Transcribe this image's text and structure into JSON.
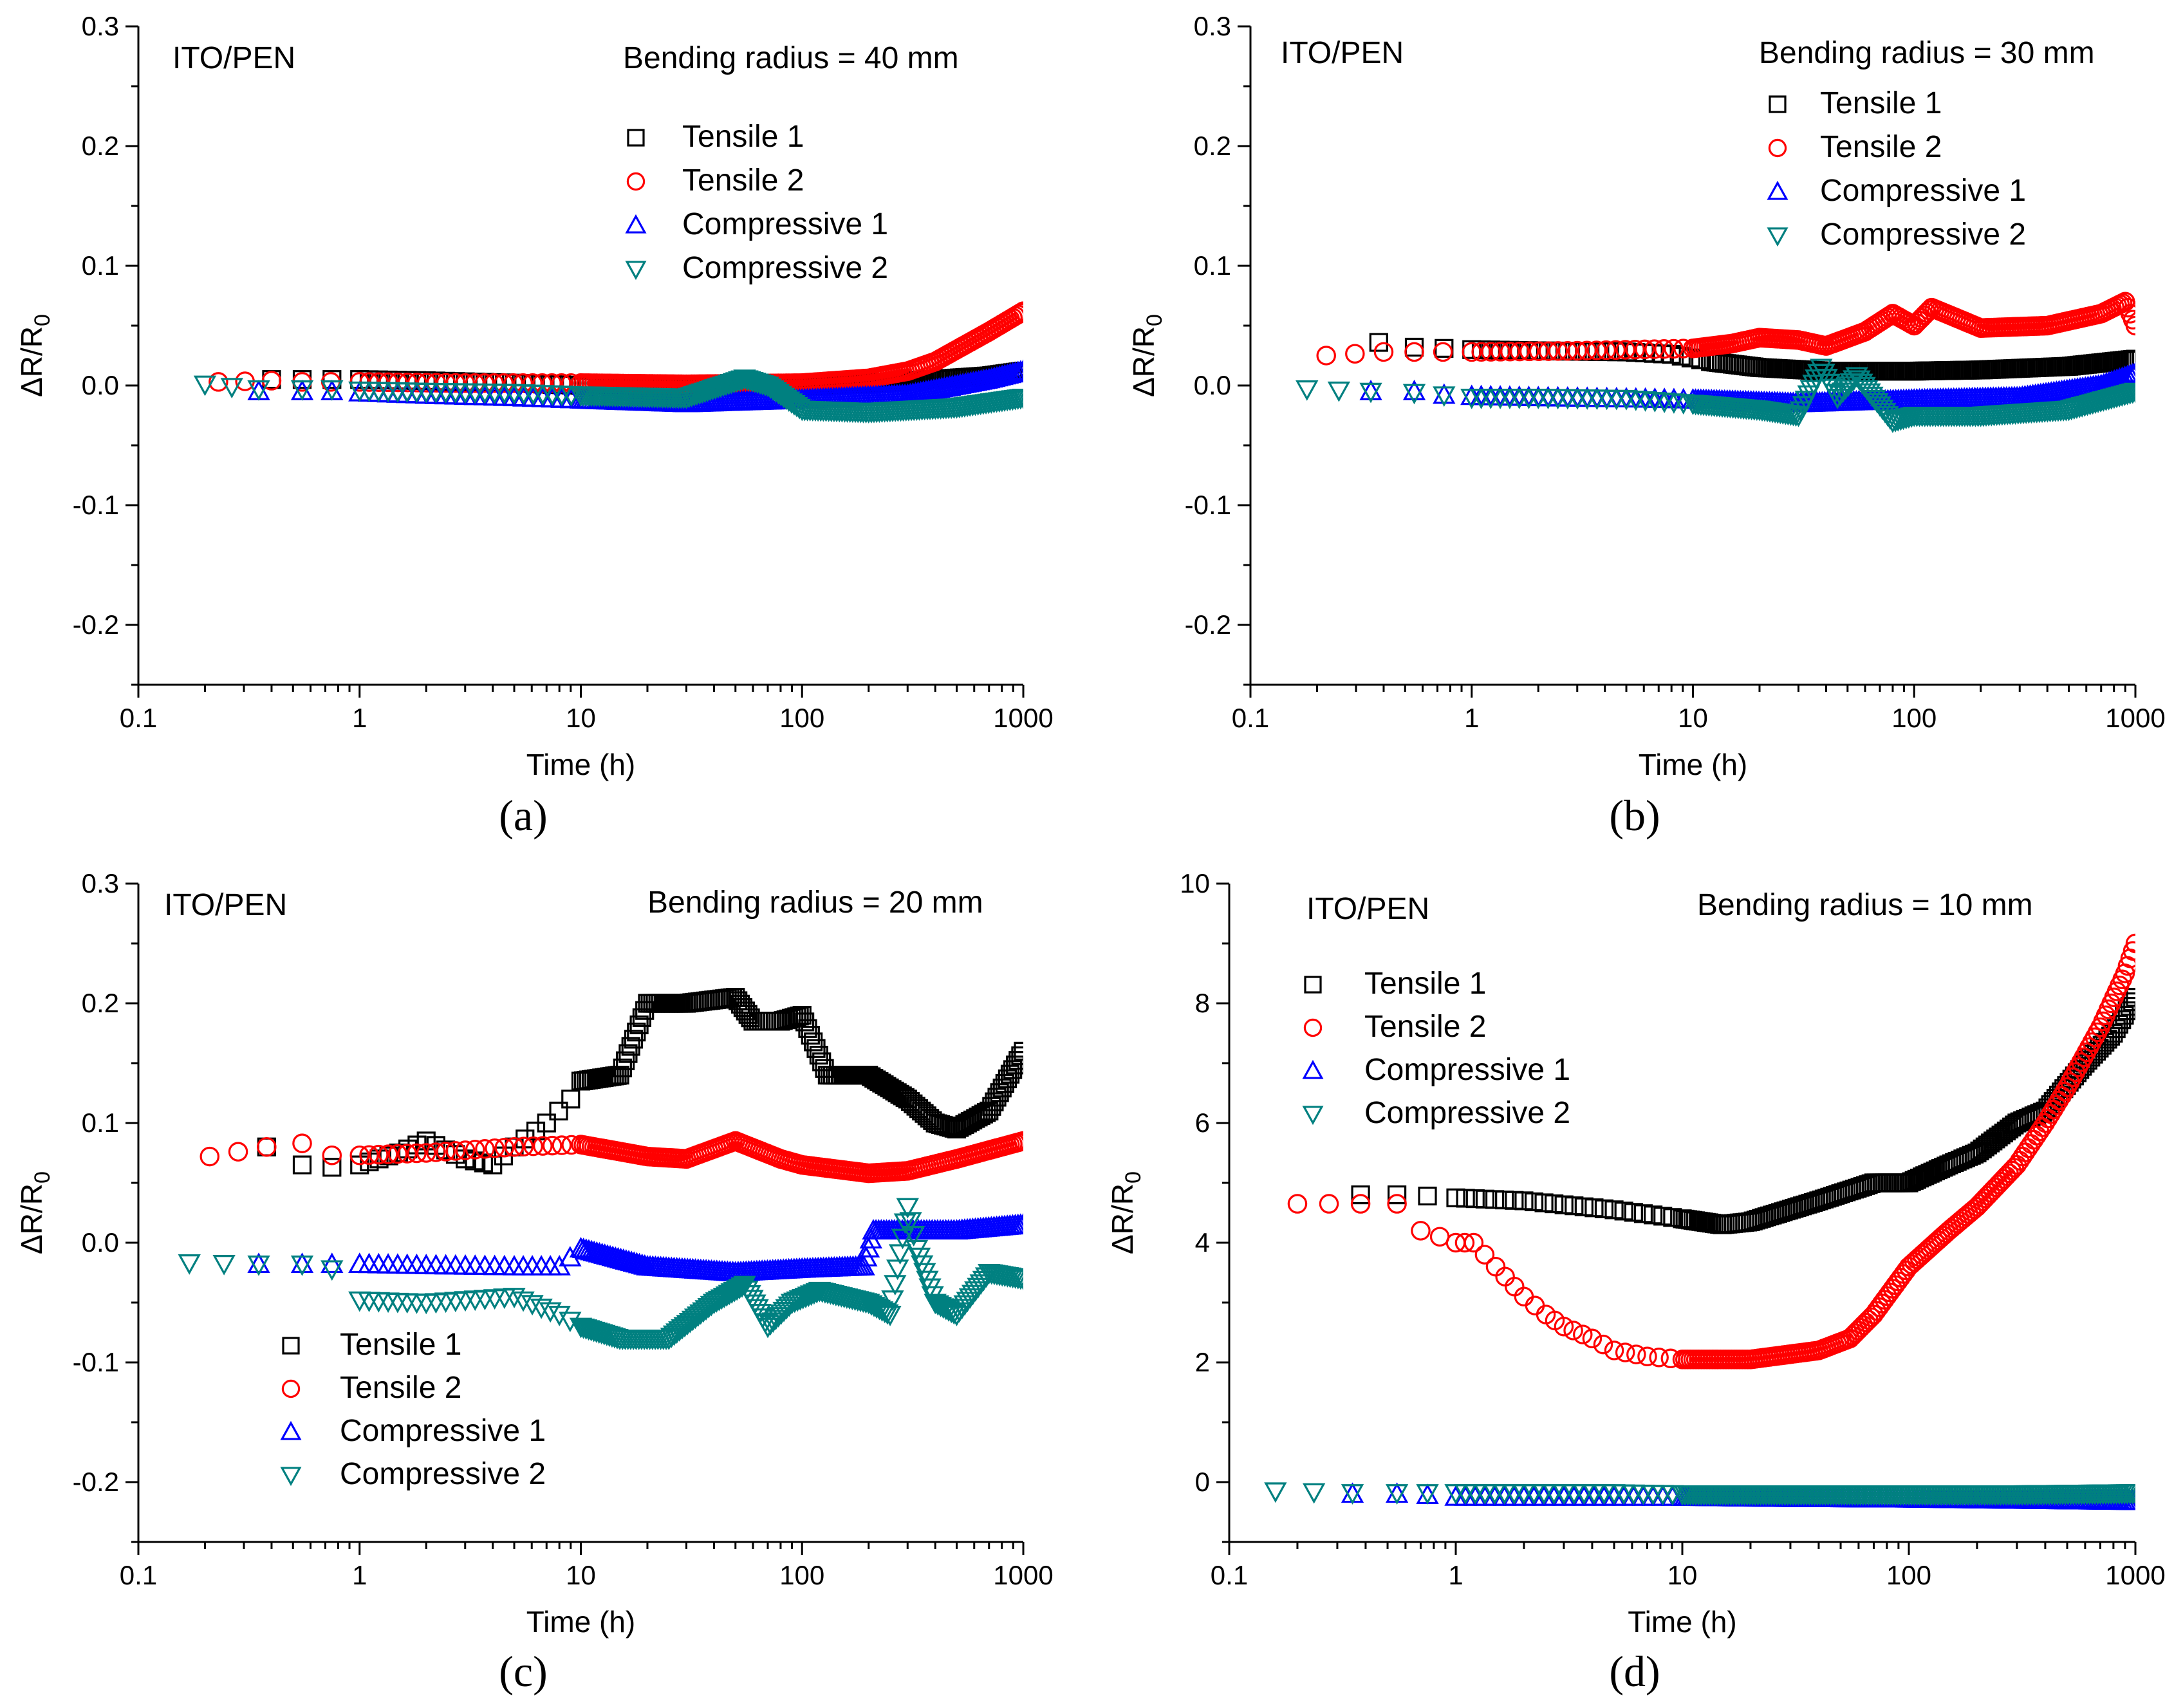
{
  "chart_data": [
    {
      "type": "scatter",
      "panel_label": "(a)",
      "sample_label": "ITO/PEN",
      "title": "Bending radius = 40 mm",
      "xlabel": "Time (h)",
      "ylabel": "ΔR/R0",
      "ylabel_main": "ΔR/R",
      "ylabel_sub": "0",
      "xscale": "log",
      "xlim": [
        0.1,
        1000
      ],
      "ylim": [
        -0.25,
        0.3
      ],
      "xticks": [
        0.1,
        1,
        10,
        100,
        1000
      ],
      "xtick_labels": [
        "0.1",
        "1",
        "10",
        "100",
        "1000"
      ],
      "yticks": [
        -0.2,
        -0.1,
        0.0,
        0.1,
        0.2,
        0.3
      ],
      "ytick_labels": [
        "-0.2",
        "-0.1",
        "0.0",
        "0.1",
        "0.2",
        "0.3"
      ],
      "legend_position": "top-right",
      "series": [
        {
          "name": "Tensile 1",
          "marker": "square",
          "color": "#000000",
          "x": [
            0.4,
            0.55,
            0.75,
            1,
            2,
            5,
            10,
            30,
            100,
            200,
            400,
            700,
            1000
          ],
          "y": [
            0.005,
            0.005,
            0.005,
            0.005,
            0.004,
            0.002,
            0.0,
            -0.002,
            0.0,
            0.002,
            0.005,
            0.008,
            0.012
          ]
        },
        {
          "name": "Tensile 2",
          "marker": "circle",
          "color": "#ff0000",
          "x": [
            0.23,
            0.4,
            0.55,
            1,
            3,
            10,
            30,
            100,
            200,
            300,
            400,
            500,
            700,
            1000
          ],
          "y": [
            0.003,
            0.004,
            0.003,
            0.003,
            0.002,
            0.002,
            0.001,
            0.002,
            0.006,
            0.012,
            0.02,
            0.03,
            0.045,
            0.062
          ]
        },
        {
          "name": "Compressive 1",
          "marker": "triangle-up",
          "color": "#0000ff",
          "x": [
            0.35,
            0.55,
            0.75,
            1,
            2,
            5,
            10,
            30,
            100,
            300,
            700,
            1000
          ],
          "y": [
            -0.005,
            -0.005,
            -0.005,
            -0.006,
            -0.008,
            -0.01,
            -0.012,
            -0.015,
            -0.012,
            -0.008,
            0.005,
            0.012
          ]
        },
        {
          "name": "Compressive 2",
          "marker": "triangle-down",
          "color": "#008080",
          "x": [
            0.2,
            0.35,
            0.55,
            0.75,
            1,
            2,
            5,
            10,
            30,
            55,
            70,
            100,
            200,
            500,
            1000
          ],
          "y": [
            0.001,
            -0.003,
            -0.003,
            -0.003,
            -0.004,
            -0.005,
            -0.006,
            -0.008,
            -0.01,
            0.006,
            0.0,
            -0.02,
            -0.022,
            -0.018,
            -0.01
          ]
        }
      ]
    },
    {
      "type": "scatter",
      "panel_label": "(b)",
      "sample_label": "ITO/PEN",
      "title": "Bending radius = 30 mm",
      "xlabel": "Time (h)",
      "ylabel": "ΔR/R0",
      "ylabel_main": "ΔR/R",
      "ylabel_sub": "0",
      "xscale": "log",
      "xlim": [
        0.1,
        1000
      ],
      "ylim": [
        -0.25,
        0.3
      ],
      "xticks": [
        0.1,
        1,
        10,
        100,
        1000
      ],
      "xtick_labels": [
        "0.1",
        "1",
        "10",
        "100",
        "1000"
      ],
      "yticks": [
        -0.2,
        -0.1,
        0.0,
        0.1,
        0.2,
        0.3
      ],
      "ytick_labels": [
        "-0.2",
        "-0.1",
        "0.0",
        "0.1",
        "0.2",
        "0.3"
      ],
      "legend_position": "top-right",
      "series": [
        {
          "name": "Tensile 1",
          "marker": "square",
          "color": "#000000",
          "x": [
            0.38,
            0.55,
            0.75,
            1,
            2,
            5,
            8,
            12,
            20,
            40,
            100,
            200,
            500,
            1000
          ],
          "y": [
            0.036,
            0.032,
            0.031,
            0.03,
            0.029,
            0.028,
            0.026,
            0.02,
            0.015,
            0.012,
            0.012,
            0.013,
            0.016,
            0.022
          ]
        },
        {
          "name": "Tensile 2",
          "marker": "circle",
          "color": "#ff0000",
          "x": [
            0.22,
            0.4,
            0.55,
            1,
            3,
            10,
            15,
            20,
            30,
            40,
            60,
            80,
            100,
            120,
            200,
            400,
            700,
            900,
            1000
          ],
          "y": [
            0.025,
            0.028,
            0.028,
            0.028,
            0.029,
            0.031,
            0.035,
            0.04,
            0.038,
            0.033,
            0.045,
            0.06,
            0.05,
            0.065,
            0.048,
            0.05,
            0.06,
            0.07,
            0.05
          ]
        },
        {
          "name": "Compressive 1",
          "marker": "triangle-up",
          "color": "#0000ff",
          "x": [
            0.35,
            0.55,
            0.75,
            1,
            2,
            5,
            10,
            30,
            100,
            300,
            700,
            1000
          ],
          "y": [
            -0.005,
            -0.005,
            -0.008,
            -0.009,
            -0.01,
            -0.011,
            -0.012,
            -0.015,
            -0.012,
            -0.01,
            0.0,
            0.01
          ]
        },
        {
          "name": "Compressive 2",
          "marker": "triangle-down",
          "color": "#008080",
          "x": [
            0.18,
            0.35,
            0.55,
            0.75,
            1,
            2,
            5,
            10,
            20,
            30,
            38,
            45,
            55,
            80,
            100,
            200,
            500,
            1000
          ],
          "y": [
            -0.003,
            -0.005,
            -0.006,
            -0.008,
            -0.01,
            -0.01,
            -0.011,
            -0.015,
            -0.02,
            -0.025,
            0.015,
            -0.01,
            0.008,
            -0.03,
            -0.025,
            -0.025,
            -0.02,
            -0.005
          ]
        }
      ]
    },
    {
      "type": "scatter",
      "panel_label": "(c)",
      "sample_label": "ITO/PEN",
      "title": "Bending radius = 20 mm",
      "xlabel": "Time (h)",
      "ylabel": "ΔR/R0",
      "ylabel_main": "ΔR/R",
      "ylabel_sub": "0",
      "xscale": "log",
      "xlim": [
        0.1,
        1000
      ],
      "ylim": [
        -0.25,
        0.3
      ],
      "xticks": [
        0.1,
        1,
        10,
        100,
        1000
      ],
      "xtick_labels": [
        "0.1",
        "1",
        "10",
        "100",
        "1000"
      ],
      "yticks": [
        -0.2,
        -0.1,
        0.0,
        0.1,
        0.2,
        0.3
      ],
      "ytick_labels": [
        "-0.2",
        "-0.1",
        "0.0",
        "0.1",
        "0.2",
        "0.3"
      ],
      "legend_position": "bottom-left",
      "series": [
        {
          "name": "Tensile 1",
          "marker": "square",
          "color": "#000000",
          "x": [
            0.38,
            0.55,
            0.75,
            1,
            1.5,
            2,
            3,
            4,
            5,
            7,
            9,
            10,
            15,
            20,
            30,
            50,
            60,
            80,
            100,
            130,
            200,
            300,
            400,
            500,
            700,
            1000
          ],
          "y": [
            0.08,
            0.065,
            0.063,
            0.065,
            0.075,
            0.085,
            0.07,
            0.065,
            0.08,
            0.1,
            0.12,
            0.135,
            0.14,
            0.2,
            0.2,
            0.205,
            0.185,
            0.185,
            0.19,
            0.14,
            0.14,
            0.12,
            0.1,
            0.095,
            0.11,
            0.16
          ]
        },
        {
          "name": "Tensile 2",
          "marker": "circle",
          "color": "#ff0000",
          "x": [
            0.21,
            0.38,
            0.55,
            0.75,
            1,
            2,
            5,
            10,
            20,
            30,
            50,
            80,
            100,
            200,
            300,
            500,
            1000
          ],
          "y": [
            0.072,
            0.08,
            0.083,
            0.073,
            0.073,
            0.075,
            0.08,
            0.082,
            0.072,
            0.07,
            0.085,
            0.07,
            0.065,
            0.058,
            0.06,
            0.07,
            0.085
          ]
        },
        {
          "name": "Compressive 1",
          "marker": "triangle-up",
          "color": "#0000ff",
          "x": [
            0.35,
            0.55,
            0.75,
            1,
            2,
            5,
            8,
            10,
            20,
            50,
            100,
            190,
            210,
            300,
            500,
            1000
          ],
          "y": [
            -0.018,
            -0.018,
            -0.018,
            -0.018,
            -0.019,
            -0.02,
            -0.02,
            -0.005,
            -0.02,
            -0.025,
            -0.022,
            -0.02,
            0.01,
            0.01,
            0.01,
            0.015
          ]
        },
        {
          "name": "Compressive 2",
          "marker": "triangle-down",
          "color": "#008080",
          "x": [
            0.17,
            0.35,
            0.55,
            0.75,
            1,
            2,
            5,
            8,
            10,
            15,
            25,
            40,
            55,
            70,
            90,
            120,
            200,
            250,
            300,
            330,
            400,
            500,
            700,
            1000
          ],
          "y": [
            -0.017,
            -0.018,
            -0.018,
            -0.022,
            -0.048,
            -0.05,
            -0.045,
            -0.06,
            -0.07,
            -0.08,
            -0.08,
            -0.05,
            -0.035,
            -0.07,
            -0.05,
            -0.04,
            -0.05,
            -0.06,
            0.03,
            -0.005,
            -0.05,
            -0.06,
            -0.025,
            -0.03
          ]
        }
      ]
    },
    {
      "type": "scatter",
      "panel_label": "(d)",
      "sample_label": "ITO/PEN",
      "title": "Bending radius = 10 mm",
      "xlabel": "Time (h)",
      "ylabel": "ΔR/R0",
      "ylabel_main": "ΔR/R",
      "ylabel_sub": "0",
      "xscale": "log",
      "xlim": [
        0.1,
        1000
      ],
      "ylim": [
        -1,
        10
      ],
      "xticks": [
        0.1,
        1,
        10,
        100,
        1000
      ],
      "xtick_labels": [
        "0.1",
        "1",
        "10",
        "100",
        "1000"
      ],
      "yticks": [
        0,
        2,
        4,
        6,
        8,
        10
      ],
      "ytick_labels": [
        "0",
        "2",
        "4",
        "6",
        "8",
        "10"
      ],
      "legend_position": "top-left",
      "series": [
        {
          "name": "Tensile 1",
          "marker": "square",
          "color": "#000000",
          "x": [
            0.38,
            0.55,
            0.75,
            1,
            2,
            5,
            10,
            15,
            20,
            40,
            70,
            100,
            150,
            200,
            300,
            400,
            600,
            800,
            1000
          ],
          "y": [
            4.8,
            4.8,
            4.78,
            4.75,
            4.7,
            4.55,
            4.4,
            4.3,
            4.35,
            4.7,
            5.0,
            5.0,
            5.3,
            5.5,
            6.0,
            6.2,
            7.0,
            7.5,
            8.1
          ]
        },
        {
          "name": "Tensile 2",
          "marker": "circle",
          "color": "#ff0000",
          "x": [
            0.2,
            0.38,
            0.55,
            0.7,
            0.85,
            1,
            1.2,
            1.5,
            2,
            2.5,
            3,
            4,
            5,
            7,
            10,
            20,
            40,
            55,
            70,
            100,
            150,
            200,
            300,
            400,
            500,
            700,
            900,
            1000
          ],
          "y": [
            4.65,
            4.65,
            4.65,
            4.2,
            4.1,
            4.0,
            4.0,
            3.6,
            3.1,
            2.8,
            2.6,
            2.4,
            2.2,
            2.1,
            2.05,
            2.05,
            2.2,
            2.4,
            2.8,
            3.6,
            4.2,
            4.6,
            5.3,
            6.0,
            6.6,
            7.6,
            8.5,
            9.0
          ]
        },
        {
          "name": "Compressive 1",
          "marker": "triangle-up",
          "color": "#0000ff",
          "x": [
            0.35,
            0.55,
            0.75,
            1,
            2,
            5,
            10,
            30,
            100,
            300,
            1000
          ],
          "y": [
            -0.2,
            -0.2,
            -0.22,
            -0.25,
            -0.25,
            -0.25,
            -0.25,
            -0.27,
            -0.28,
            -0.3,
            -0.32
          ]
        },
        {
          "name": "Compressive 2",
          "marker": "triangle-down",
          "color": "#008080",
          "x": [
            0.16,
            0.35,
            0.55,
            0.75,
            1,
            2,
            5,
            10,
            30,
            100,
            300,
            1000
          ],
          "y": [
            -0.15,
            -0.18,
            -0.18,
            -0.18,
            -0.18,
            -0.18,
            -0.18,
            -0.2,
            -0.2,
            -0.2,
            -0.2,
            -0.18
          ]
        }
      ]
    }
  ]
}
